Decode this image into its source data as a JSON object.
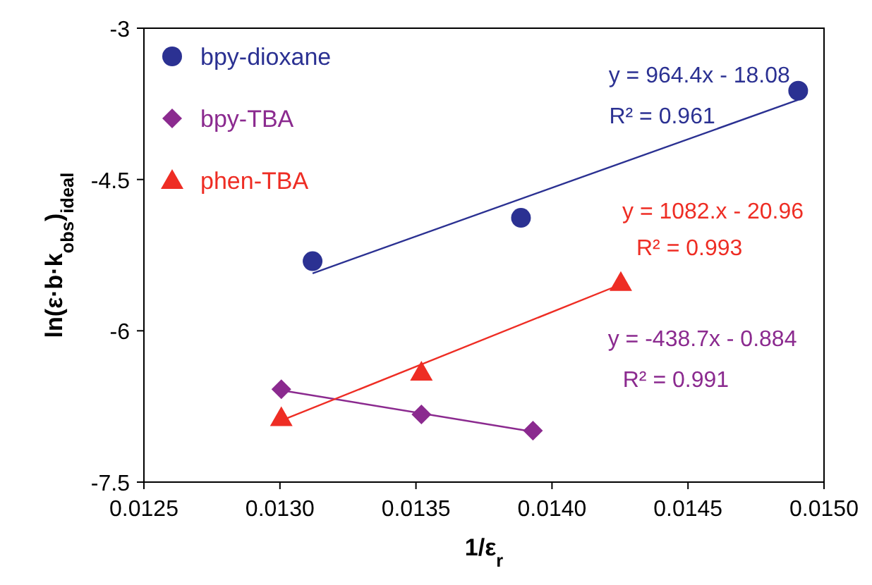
{
  "chart_data": {
    "type": "scatter",
    "xlabel": "1/ε$_{r}$",
    "ylabel": "ln(ε·b·k$_{obs}$)$_{ideal}$",
    "xlim": [
      0.0125,
      0.015
    ],
    "ylim": [
      -7.5,
      -3
    ],
    "xticks": [
      0.0125,
      {
        "value": 0.013,
        "label": "0.0130"
      },
      0.0135,
      {
        "value": 0.014,
        "label": "0.0140"
      },
      0.0145,
      {
        "value": 0.015,
        "label": "0.0150"
      }
    ],
    "yticks": [
      -3,
      -4.5,
      -6,
      -7.5
    ],
    "grid": false,
    "legend": "top left",
    "series": [
      {
        "name": "bpy-dioxane",
        "color": "#2b3192",
        "marker": "circle",
        "x": [
          0.01312,
          0.013886,
          0.014905
        ],
        "values": [
          -5.31,
          -4.88,
          -3.62
        ]
      },
      {
        "name": "bpy-TBA",
        "color": "#8b2a8f",
        "marker": "diamond",
        "x": [
          0.013005,
          0.01352,
          0.01393
        ],
        "values": [
          -6.58,
          -6.83,
          -6.99
        ]
      },
      {
        "name": "phen-TBA",
        "color": "#ee2d24",
        "marker": "triangle",
        "x": [
          0.013005,
          0.01352,
          0.014253
        ],
        "values": [
          -6.86,
          -6.41,
          -5.52
        ]
      },
      {
        "type": "line",
        "color": "#2b3192",
        "marker": "none",
        "x": [
          0.01312,
          0.014905
        ],
        "values": [
          -5.43,
          -3.71
        ]
      },
      {
        "type": "line",
        "color": "#8b2a8f",
        "marker": "none",
        "x": [
          0.013005,
          0.01393
        ],
        "values": [
          -6.59,
          -7.0
        ]
      },
      {
        "type": "line",
        "color": "#ee2d24",
        "marker": "none",
        "x": [
          0.013005,
          0.014253
        ],
        "values": [
          -6.89,
          -5.54
        ]
      }
    ],
    "annotations": [
      "y = 964.4x - 18.08",
      "R² = 0.961",
      "y = -438.7x - 0.884",
      "R² = 0.991",
      "y = 1082.x - 20.96",
      "R² = 0.993"
    ]
  }
}
